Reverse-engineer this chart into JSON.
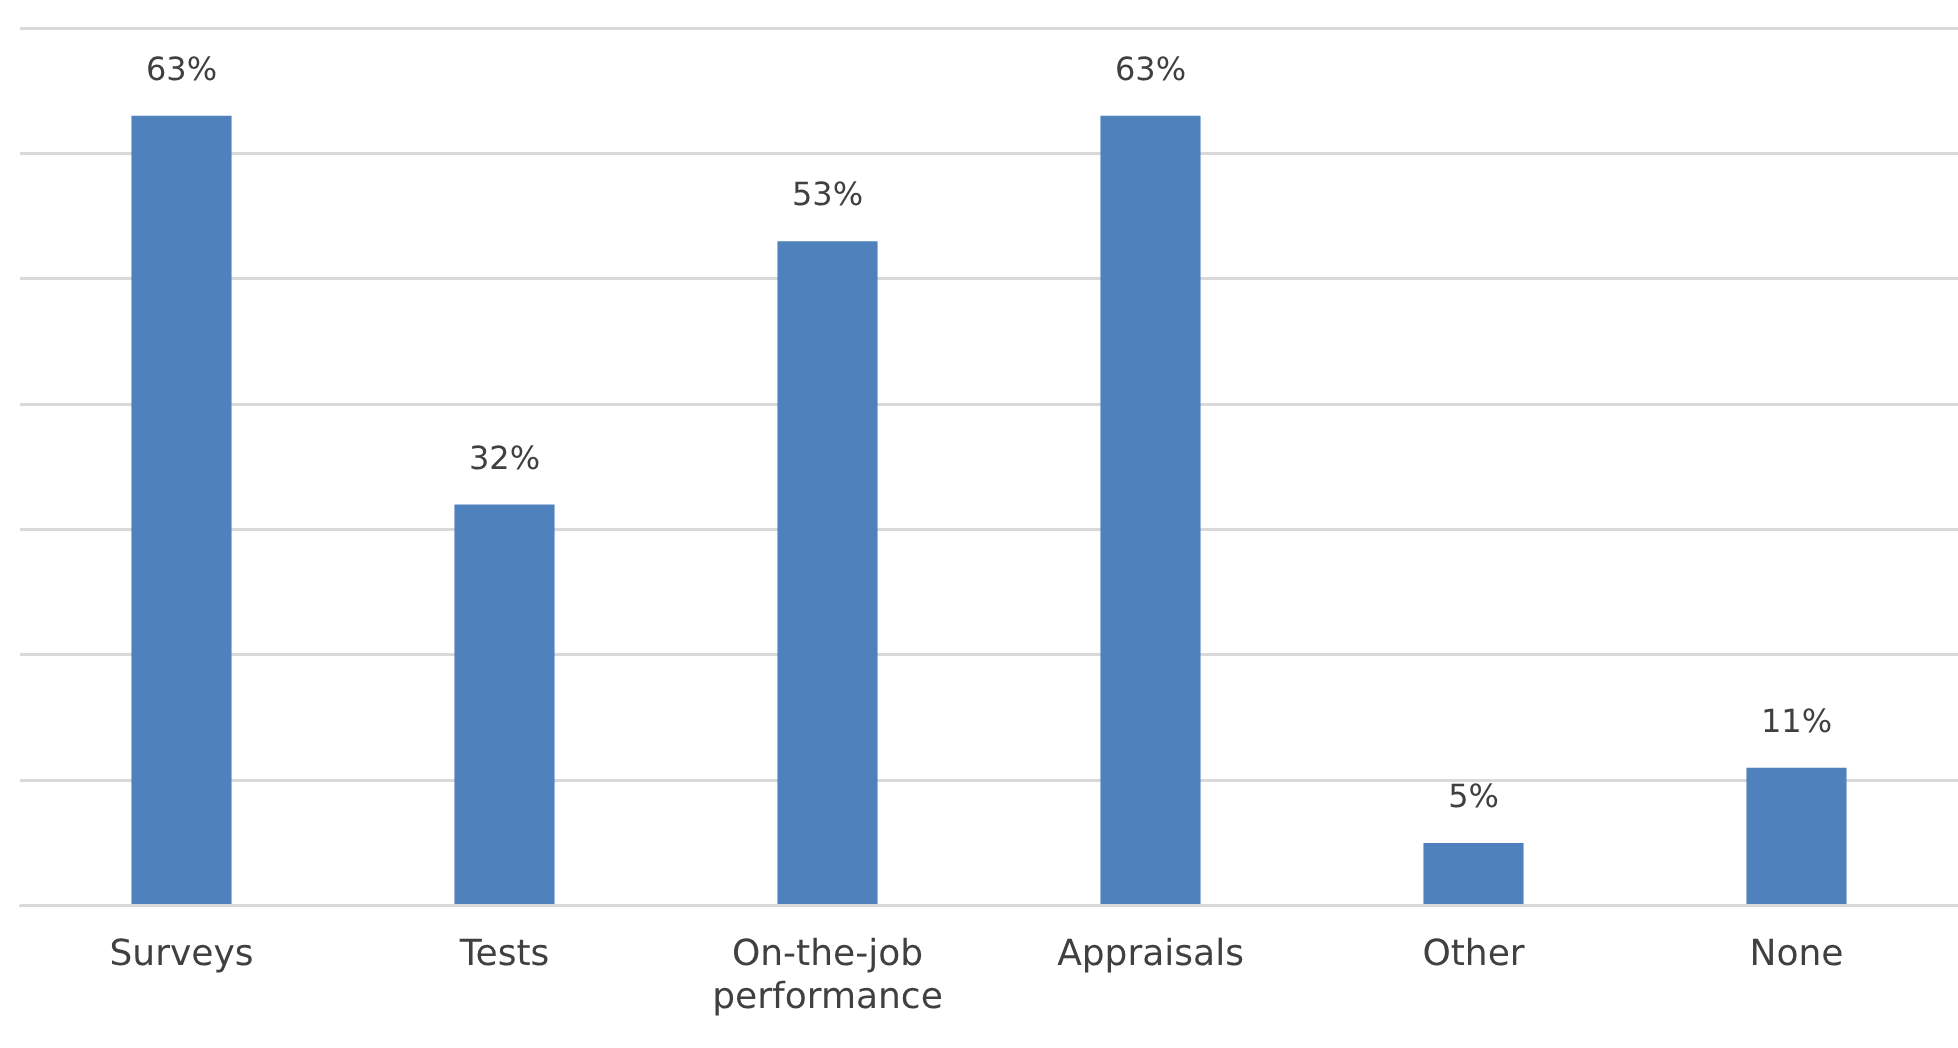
{
  "chart_data": {
    "type": "bar",
    "categories": [
      "Surveys",
      "Tests",
      "On-the-job performance",
      "Appraisals",
      "Other",
      "None"
    ],
    "values": [
      63,
      32,
      53,
      63,
      5,
      11
    ],
    "color": "#4f81bd",
    "data_labels": true,
    "value_labels": [
      "63%",
      "32%",
      "53%",
      "63%",
      "5%",
      "11%"
    ],
    "ylim": [
      0,
      70
    ],
    "yticks": [
      {
        "value": 0,
        "label": null
      },
      {
        "value": 10,
        "label": null
      },
      {
        "value": 20,
        "label": null
      },
      {
        "value": 30,
        "label": null
      },
      {
        "value": 40,
        "label": null
      },
      {
        "value": 50,
        "label": null
      },
      {
        "value": 60,
        "label": null
      },
      {
        "value": 70,
        "label": null
      }
    ],
    "grid": "y",
    "tick_labels": "x"
  }
}
